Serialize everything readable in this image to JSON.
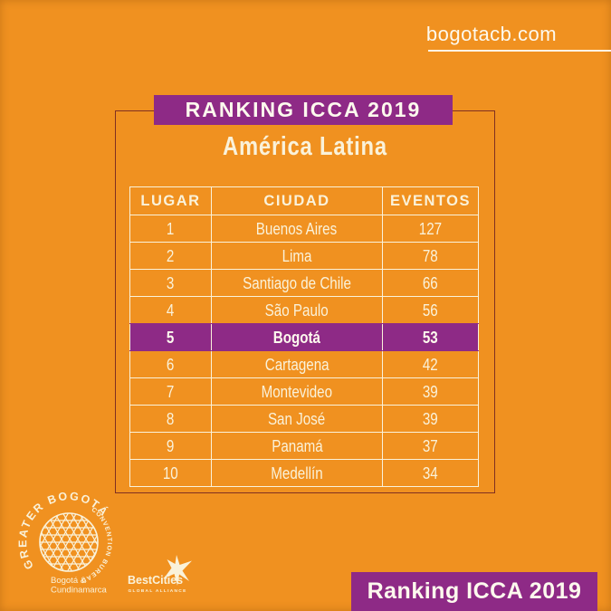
{
  "colors": {
    "orange": "#F09120",
    "purple": "#8E2A86",
    "cream": "#FAF2DA",
    "white": "#FDF9EE",
    "frame": "#803021"
  },
  "header": {
    "website": "bogotacb.com"
  },
  "chart_data": {
    "type": "table",
    "title": "RANKING ICCA 2019",
    "subtitle": "América Latina",
    "columns": [
      "LUGAR",
      "CIUDAD",
      "EVENTOS"
    ],
    "rows": [
      [
        "1",
        "Buenos Aires",
        "127"
      ],
      [
        "2",
        "Lima",
        "78"
      ],
      [
        "3",
        "Santiago de Chile",
        "66"
      ],
      [
        "4",
        "São Paulo",
        "56"
      ],
      [
        "5",
        "Bogotá",
        "53"
      ],
      [
        "6",
        "Cartagena",
        "42"
      ],
      [
        "7",
        "Montevideo",
        "39"
      ],
      [
        "8",
        "San José",
        "39"
      ],
      [
        "9",
        "Panamá",
        "37"
      ],
      [
        "10",
        "Medellín",
        "34"
      ]
    ],
    "highlight_row_index": 4,
    "highlighted_entry": {
      "lugar": "5",
      "ciudad": "Bogotá",
      "eventos": "53"
    }
  },
  "footer": {
    "banner_title": "Ranking ICCA 2019",
    "logos": {
      "greater_bogota": {
        "arc_primary": "GREATER BOGOTÁ",
        "arc_secondary": "CONVENTION BUREAU",
        "caption_line1": "Bogotá &",
        "caption_line2": "Cundinamarca"
      },
      "bestcities": {
        "name": "BestCities",
        "tagline": "GLOBAL ALLIANCE"
      }
    }
  }
}
